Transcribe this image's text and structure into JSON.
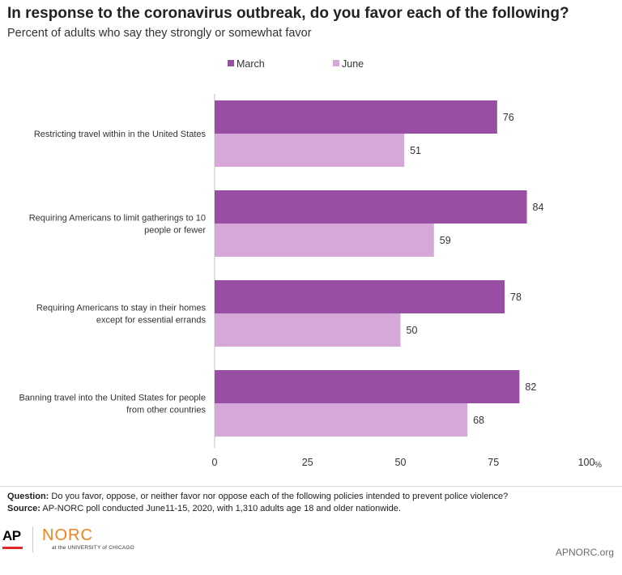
{
  "header": {
    "title": "In response to the coronavirus outbreak, do you favor each of the following?",
    "subtitle": "Percent of adults who say they strongly or somewhat favor"
  },
  "chart_data": {
    "type": "bar",
    "orientation": "horizontal",
    "categories": [
      [
        "Restricting travel within in the United States"
      ],
      [
        "Requiring Americans to limit gatherings to 10",
        "people or fewer"
      ],
      [
        "Requiring Americans to stay in their homes",
        "except for essential errands"
      ],
      [
        "Banning travel into the United States for people",
        "from other countries"
      ]
    ],
    "series": [
      {
        "name": "March",
        "values": [
          76,
          84,
          78,
          82
        ],
        "color": "#984ea3"
      },
      {
        "name": "June",
        "values": [
          51,
          59,
          50,
          68
        ],
        "color": "#d6a8d9"
      }
    ],
    "xlim": [
      0,
      100
    ],
    "xticks": [
      "0",
      "25",
      "50",
      "75",
      "100"
    ],
    "x_unit": "%",
    "legend_position": "top-left",
    "data_labels": true,
    "grid": false
  },
  "footnotes": {
    "question_label": "Question:",
    "question_text": " Do you favor, oppose, or neither favor nor oppose each of the following policies  intended to prevent police violence?",
    "source_label": "Source:",
    "source_text": " AP-NORC poll conducted June11-15, 2020, with 1,310 adults age 18 and older nationwide."
  },
  "footer": {
    "ap_logo": "AP",
    "norc_logo": "NORC",
    "norc_sub": "at the UNIVERSITY of CHICAGO",
    "site": "APNORC.org"
  }
}
